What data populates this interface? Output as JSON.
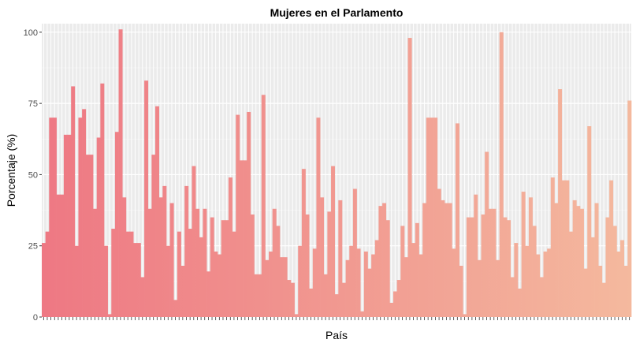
{
  "chart_data": {
    "type": "bar",
    "title": "Mujeres en el Parlamento",
    "xlabel": "País",
    "ylabel": "Porcentaje (%)",
    "ylim": [
      0,
      103
    ],
    "y_ticks": [
      0,
      25,
      50,
      75,
      100
    ],
    "grid": true,
    "legend": "none",
    "gradient_colors": [
      "#ee7883",
      "#f4b99e"
    ],
    "values": [
      26,
      30,
      70,
      70,
      43,
      43,
      64,
      64,
      81,
      25,
      70,
      73,
      57,
      57,
      38,
      63,
      82,
      25,
      1,
      31,
      65,
      101,
      42,
      30,
      30,
      26,
      26,
      14,
      83,
      38,
      57,
      74,
      42,
      46,
      25,
      40,
      6,
      30,
      18,
      46,
      31,
      53,
      38,
      28,
      38,
      16,
      35,
      23,
      22,
      34,
      34,
      49,
      30,
      71,
      55,
      55,
      72,
      36,
      15,
      15,
      78,
      20,
      23,
      38,
      32,
      21,
      21,
      13,
      12,
      1,
      25,
      52,
      36,
      10,
      24,
      70,
      42,
      15,
      37,
      53,
      8,
      41,
      12,
      20,
      25,
      45,
      24,
      2,
      23,
      17,
      22,
      27,
      39,
      40,
      34,
      5,
      9,
      13,
      32,
      21,
      98,
      26,
      33,
      22,
      40,
      70,
      70,
      70,
      45,
      41,
      40,
      40,
      24,
      68,
      18,
      1,
      35,
      35,
      43,
      20,
      36,
      58,
      38,
      38,
      20,
      100,
      35,
      34,
      14,
      26,
      10,
      44,
      25,
      42,
      32,
      22,
      14,
      23,
      24,
      49,
      40,
      80,
      48,
      48,
      30,
      41,
      39,
      38,
      17,
      67,
      28,
      40,
      18,
      12,
      35,
      48,
      32,
      23,
      27,
      18,
      76
    ]
  }
}
